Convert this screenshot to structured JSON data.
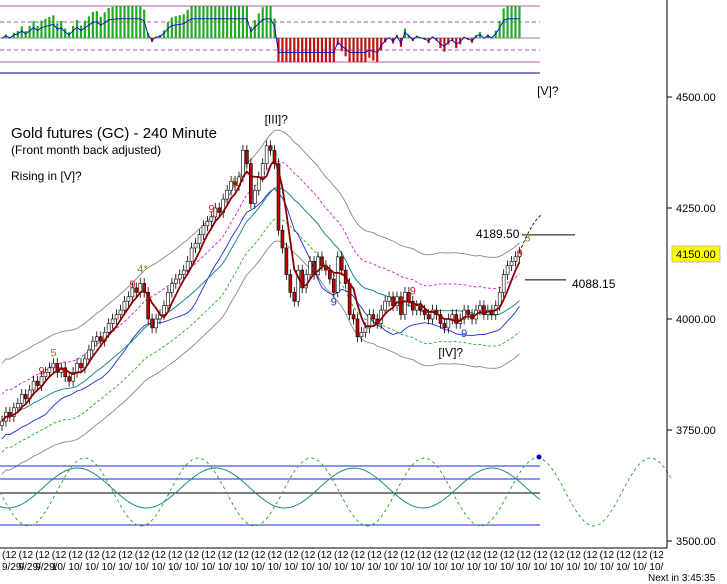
{
  "chart_data": {
    "type": "candlestick",
    "title": "Gold futures (GC) - 240 Minute",
    "subtitle": "(Front month back adjusted)",
    "note": "Rising in [V]?",
    "ylim": [
      3500,
      4550
    ],
    "yticks": [
      {
        "value": 4500,
        "label": "4500.00"
      },
      {
        "value": 4250,
        "label": "4250.00"
      },
      {
        "value": 4000,
        "label": "4000.00"
      },
      {
        "value": 3750,
        "label": "3750.00"
      },
      {
        "value": 3500,
        "label": "3500.00"
      }
    ],
    "current_price": {
      "value": 4150,
      "label": "4150.00"
    },
    "levels": [
      {
        "value": 4189.5,
        "label": "4189.50"
      },
      {
        "value": 4088.15,
        "label": "4088.15"
      }
    ],
    "wave_labels": [
      {
        "text": "[III]?",
        "bar": 68,
        "price": 4440
      },
      {
        "text": "[IV]?",
        "bar": 112,
        "price": 3915
      },
      {
        "text": "[V]?",
        "bar": 137,
        "price": 4505
      }
    ],
    "count_labels": [
      {
        "text": "5",
        "bar": 13,
        "price": 3915,
        "color": "#9a7b1e"
      },
      {
        "text": "9",
        "bar": 10,
        "price": 3875,
        "color": "#d32020"
      },
      {
        "text": "9",
        "bar": 33,
        "price": 4070,
        "color": "#d32020"
      },
      {
        "text": "4*",
        "bar": 35,
        "price": 4105,
        "color": "#9a7b1e"
      },
      {
        "text": "9",
        "bar": 53,
        "price": 4240,
        "color": "#d32020"
      },
      {
        "text": "5",
        "bar": 59,
        "price": 4300,
        "color": "#9a7b1e"
      },
      {
        "text": "9",
        "bar": 84,
        "price": 4030,
        "color": "#2030d0"
      },
      {
        "text": "9",
        "bar": 104,
        "price": 4055,
        "color": "#d32020"
      },
      {
        "text": "9",
        "bar": 117,
        "price": 3960,
        "color": "#2030d0"
      },
      {
        "text": "9",
        "bar": 131,
        "price": 4140,
        "color": "#d32020"
      },
      {
        "text": "3",
        "bar": 133,
        "price": 4175,
        "color": "#9a7b1e"
      }
    ],
    "closes": [
      3770,
      3790,
      3780,
      3800,
      3810,
      3830,
      3820,
      3840,
      3860,
      3850,
      3870,
      3880,
      3890,
      3900,
      3880,
      3890,
      3870,
      3860,
      3880,
      3900,
      3890,
      3910,
      3930,
      3950,
      3960,
      3950,
      3970,
      3990,
      4000,
      4010,
      4020,
      4040,
      4050,
      4070,
      4060,
      4080,
      4060,
      4000,
      3980,
      4000,
      4010,
      4030,
      4060,
      4080,
      4090,
      4100,
      4110,
      4130,
      4160,
      4170,
      4190,
      4210,
      4220,
      4230,
      4250,
      4240,
      4270,
      4290,
      4310,
      4300,
      4320,
      4380,
      4350,
      4260,
      4290,
      4320,
      4350,
      4390,
      4380,
      4350,
      4200,
      4160,
      4100,
      4060,
      4040,
      4110,
      4070,
      4100,
      4130,
      4100,
      4140,
      4120,
      4110,
      4090,
      4060,
      4140,
      4110,
      4080,
      4010,
      4000,
      3960,
      3970,
      3980,
      4010,
      4000,
      3990,
      4020,
      4040,
      4050,
      4030,
      4050,
      4010,
      4060,
      4040,
      4020,
      4030,
      4020,
      4010,
      4000,
      4020,
      4010,
      3990,
      3980,
      4000,
      4010,
      3990,
      4000,
      4020,
      4010,
      4000,
      4020,
      4030,
      4010,
      4020,
      4010,
      4030,
      4060,
      4100,
      4120,
      4130,
      4140,
      4150
    ],
    "series": [
      {
        "name": "",
        "kind": "dark-red moving average",
        "color": "#8b0000"
      },
      {
        "name": "",
        "kind": "teal moving average",
        "color": "#1a8a8a"
      },
      {
        "name": "",
        "kind": "magenta dashed",
        "color": "#d020d0"
      },
      {
        "name": "",
        "kind": "blue lower band",
        "color": "#1e2adc"
      },
      {
        "name": "",
        "kind": "green dashed lower",
        "color": "#20b020"
      },
      {
        "name": "",
        "kind": "gray envelope",
        "color": "#888888"
      }
    ],
    "xtick_labels": [
      "(12",
      "(12",
      "(12",
      "(12",
      "(12",
      "(12",
      "(12",
      "(12",
      "(12",
      "(12",
      "(12",
      "(12",
      "(12",
      "(12",
      "(12",
      "(12",
      "(12",
      "(12",
      "(12",
      "(12",
      "(12",
      "(12",
      "(12",
      "(12",
      "(12",
      "(12",
      "(12",
      "(12",
      "(12",
      "(12",
      "(12",
      "(12",
      "(12",
      "(12",
      "(12",
      "(12",
      "(12",
      "(12",
      "(12",
      "(12",
      "(12",
      "(12",
      "(12",
      "(12",
      "(12",
      "(12",
      "(12",
      "(12",
      "(12",
      "(12",
      "(12",
      "(12",
      "(12",
      "(12",
      "(12",
      "(12",
      "(12",
      "(12",
      "(12",
      "(12",
      "(12",
      "(12",
      "(12",
      "(12",
      "(12",
      "(12",
      "(12",
      "(12",
      "(12",
      "(12",
      "(12",
      "(12"
    ],
    "xtick_dates": [
      "9/29/",
      "9/29/",
      "9/29/",
      "10/",
      "10/",
      "10/",
      "10/",
      "10/",
      "10/",
      "10/",
      "10/",
      "10/",
      "10/",
      "10/",
      "10/",
      "10/",
      "10/",
      "10/",
      "10/",
      "10/",
      "10/",
      "10/",
      "10/",
      "10/",
      "10/",
      "10/",
      "10/",
      "10/",
      "10/",
      "10/",
      "10/",
      "10/",
      "10/",
      "10/",
      "10/",
      "10/",
      "10/",
      "10/",
      "10/",
      "10/",
      "10/",
      "10/",
      "10/",
      "10/",
      "11/",
      "11/",
      "11/",
      "11/",
      "11/",
      "11/",
      "11/",
      "11/",
      "11/",
      "11/",
      "11/",
      "11/",
      "11/",
      "11/",
      "11/",
      "11/",
      "11/",
      "11/",
      "11/",
      "11/",
      "11/",
      "11/",
      "11/",
      "11/",
      "11/",
      "11/",
      "11/",
      "11/"
    ],
    "bottom_right_note": "Next in 3:45:35"
  },
  "colors": {
    "accent": "#0000cc",
    "up_candle": "#ffffff",
    "down_candle": "#c00000",
    "price_box": "#ffff00"
  }
}
